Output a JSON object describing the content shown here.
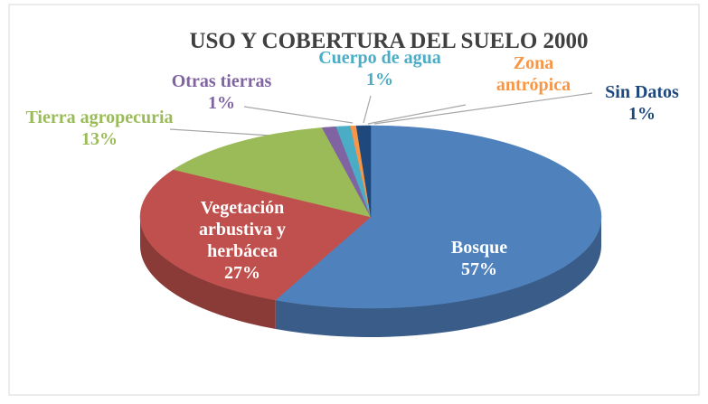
{
  "chart_data": {
    "type": "pie",
    "title": "USO Y COBERTURA DEL SUELO 2000",
    "categories": [
      "Bosque",
      "Vegetación arbustiva y herbácea",
      "Tierra agropecuria",
      "Otras tierras",
      "Cuerpo de agua",
      "Zona antrópica",
      "Sin Datos"
    ],
    "values": [
      57,
      27,
      13,
      1,
      1,
      0.4,
      1
    ],
    "value_labels": [
      "57%",
      "27%",
      "13%",
      "1%",
      "1%",
      null,
      "1%"
    ],
    "colors": [
      "#4f81bd",
      "#c0504d",
      "#9bbb59",
      "#8064a2",
      "#4bacc6",
      "#f79646",
      "#1f497d"
    ],
    "label_colors": [
      "#ffffff",
      "#ffffff",
      "#9bbb59",
      "#8064a2",
      "#4bacc6",
      "#f79646",
      "#1f497d"
    ]
  }
}
